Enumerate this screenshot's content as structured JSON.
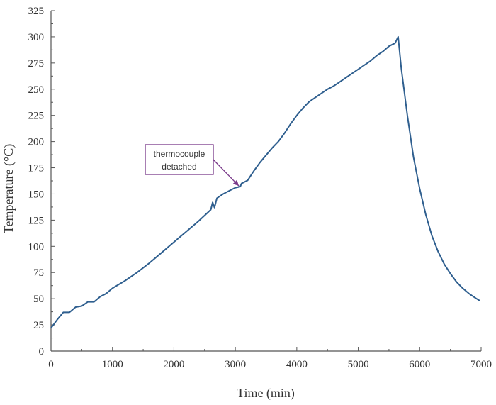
{
  "chart_data": {
    "type": "line",
    "title": "",
    "xlabel": "Time (min)",
    "ylabel": "Temperature (°C)",
    "xlim": [
      0,
      7000
    ],
    "ylim": [
      0,
      325
    ],
    "xticks": [
      0,
      1000,
      2000,
      3000,
      4000,
      5000,
      6000,
      7000
    ],
    "yticks": [
      0,
      25,
      50,
      75,
      100,
      125,
      150,
      175,
      200,
      225,
      250,
      275,
      300,
      325
    ],
    "grid": false,
    "line_color": "#2f5f8f",
    "annotation": {
      "text_lines": [
        "thermocouple",
        "detached"
      ],
      "target": [
        3080,
        157
      ],
      "border_color": "#7a3a8a"
    },
    "series": [
      {
        "x": [
          0,
          100,
          200,
          300,
          400,
          500,
          600,
          700,
          800,
          900,
          1000,
          1200,
          1400,
          1600,
          1800,
          2000,
          2200,
          2400,
          2600,
          2630,
          2660,
          2700,
          2800,
          2900,
          3000,
          3080,
          3100,
          3200,
          3300,
          3400,
          3500,
          3600,
          3700,
          3800,
          3900,
          4000,
          4100,
          4200,
          4300,
          4400,
          4500,
          4600,
          4700,
          4800,
          4900,
          5000,
          5100,
          5200,
          5300,
          5400,
          5500,
          5600,
          5650,
          5700,
          5800,
          5900,
          6000,
          6100,
          6200,
          6300,
          6400,
          6500,
          6600,
          6700,
          6800,
          6900,
          6980
        ],
        "y": [
          22,
          30,
          37,
          37,
          42,
          43,
          47,
          47,
          52,
          55,
          60,
          67,
          75,
          84,
          94,
          104,
          114,
          124,
          135,
          142,
          137,
          146,
          150,
          153,
          156,
          157,
          160,
          163,
          172,
          180,
          187,
          194,
          200,
          208,
          217,
          225,
          232,
          238,
          242,
          246,
          250,
          253,
          257,
          261,
          265,
          269,
          273,
          277,
          282,
          286,
          291,
          294,
          300,
          270,
          225,
          185,
          155,
          130,
          110,
          95,
          83,
          74,
          66,
          60,
          55,
          51,
          48
        ]
      }
    ]
  }
}
